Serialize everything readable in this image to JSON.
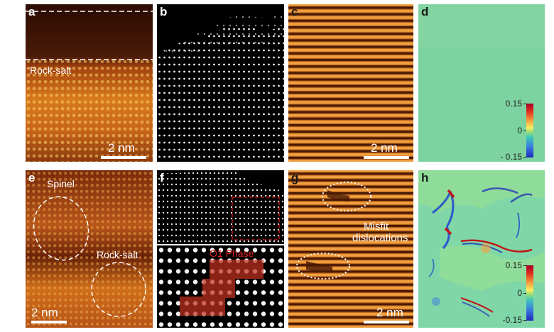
{
  "panels": {
    "a": {
      "letter": "a",
      "annotation": "Rock-salt",
      "scale_label": "2 nm"
    },
    "b": {
      "letter": "b"
    },
    "c": {
      "letter": "c",
      "scale_label": "2 nm"
    },
    "d": {
      "letter": "d",
      "colorbar": [
        "0.15",
        "0",
        "- 0.15"
      ]
    },
    "e": {
      "letter": "e",
      "annotation_1": "Spinel",
      "annotation_2": "Rock-salt",
      "scale_label": "2 nm"
    },
    "f": {
      "letter": "f",
      "annotation": "O1 Phase"
    },
    "g": {
      "letter": "g",
      "annotation_line1": "Misfit",
      "annotation_line2": "dislocations",
      "scale_label": "2 nm"
    },
    "h": {
      "letter": "h",
      "colorbar": [
        "0.15",
        "0",
        "-0.15"
      ]
    }
  },
  "colors": {
    "haadf_warm": "#e58a20",
    "haadf_dark": "#3a1204",
    "fringe_light": "#f0a040",
    "fringe_dark": "#4a1a05",
    "strain_neutral": "#7dd3a0"
  }
}
